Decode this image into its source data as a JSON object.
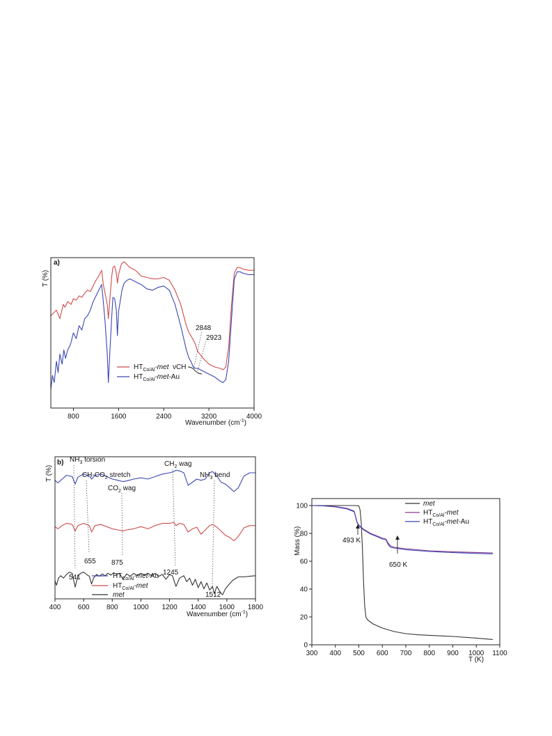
{
  "colors": {
    "red": "#cf4a4a",
    "blue": "#3a46b4",
    "black": "#333333",
    "purple": "#8a3b8a"
  },
  "chart_data": [
    {
      "id": "a",
      "type": "line",
      "panel_label": "a)",
      "xlabel": "Wavenumber (cm",
      "xlabel_sup": "-1",
      "xlabel_end": ")",
      "ylabel": "T (%)",
      "xlim": [
        400,
        4000
      ],
      "ylim": [
        0,
        100
      ],
      "xticks": [
        "800",
        "1600",
        "2400",
        "3200",
        "4000"
      ],
      "grid": false,
      "legend_position": "bottom-center",
      "annotations": [
        {
          "text": "2848",
          "x": 2848
        },
        {
          "text": "2923",
          "x": 2923
        },
        {
          "text": "νCH"
        }
      ],
      "series": [
        {
          "name": "HT",
          "name_sub": "Co/Al",
          "name_tail": "-met",
          "color": "red",
          "x": [
            400,
            500,
            560,
            620,
            650,
            700,
            760,
            800,
            850,
            900,
            950,
            1000,
            1050,
            1100,
            1150,
            1200,
            1250,
            1300,
            1330,
            1360,
            1400,
            1420,
            1450,
            1480,
            1500,
            1530,
            1560,
            1580,
            1600,
            1620,
            1640,
            1660,
            1700,
            1750,
            1800,
            1900,
            2000,
            2100,
            2200,
            2300,
            2400,
            2500,
            2600,
            2700,
            2800,
            2848,
            2880,
            2923,
            2960,
            3000,
            3100,
            3200,
            3300,
            3400,
            3450,
            3500,
            3550,
            3600,
            3650,
            3700,
            3750,
            3800,
            3900,
            4000
          ],
          "y": [
            62,
            66,
            60,
            70,
            68,
            72,
            70,
            74,
            73,
            76,
            75,
            78,
            80,
            79,
            83,
            87,
            90,
            94,
            84,
            78,
            70,
            60,
            76,
            90,
            96,
            97,
            92,
            85,
            91,
            94,
            97,
            99,
            100,
            98,
            96,
            94,
            90,
            89,
            88,
            88,
            89,
            87,
            80,
            70,
            55,
            50,
            48,
            45,
            42,
            37,
            32,
            28,
            26,
            25,
            24,
            26,
            40,
            70,
            92,
            96,
            96,
            95,
            94,
            94
          ]
        },
        {
          "name": "HT",
          "name_sub": "Co/Al",
          "name_tail": "-met-Au",
          "color": "blue",
          "x": [
            400,
            430,
            460,
            500,
            530,
            560,
            600,
            630,
            660,
            700,
            750,
            800,
            850,
            900,
            950,
            1000,
            1050,
            1100,
            1150,
            1200,
            1250,
            1300,
            1330,
            1360,
            1400,
            1420,
            1450,
            1480,
            1500,
            1530,
            1560,
            1580,
            1600,
            1620,
            1640,
            1660,
            1700,
            1750,
            1800,
            1900,
            2000,
            2100,
            2200,
            2300,
            2400,
            2500,
            2600,
            2700,
            2800,
            2848,
            2880,
            2923,
            2960,
            3000,
            3100,
            3200,
            3300,
            3400,
            3450,
            3500,
            3550,
            3600,
            3650,
            3700,
            3750,
            3800,
            3900,
            4000
          ],
          "y": [
            10,
            20,
            15,
            30,
            22,
            35,
            28,
            38,
            32,
            38,
            42,
            50,
            46,
            55,
            52,
            60,
            62,
            66,
            72,
            76,
            80,
            84,
            72,
            58,
            35,
            15,
            40,
            62,
            75,
            74,
            66,
            48,
            65,
            70,
            75,
            80,
            85,
            87,
            88,
            86,
            84,
            81,
            80,
            82,
            83,
            80,
            70,
            55,
            38,
            32,
            30,
            26,
            25,
            25,
            23,
            21,
            19,
            16,
            15,
            17,
            30,
            60,
            88,
            93,
            93,
            92,
            91,
            91
          ]
        }
      ]
    },
    {
      "id": "b",
      "type": "line",
      "panel_label": "b)",
      "xlabel": "Wavenumber (cm",
      "xlabel_sup": "-1",
      "xlabel_end": ")",
      "ylabel": "T (%)",
      "xlim": [
        400,
        1800
      ],
      "ylim": [
        0,
        100
      ],
      "xticks": [
        "400",
        "600",
        "800",
        "1000",
        "1200",
        "1400",
        "1600",
        "1800"
      ],
      "grid": false,
      "legend_position": "bottom-center",
      "annotations": [
        {
          "text": "NH",
          "sub": "3",
          "tail": " torsion"
        },
        {
          "text": "CH-CO",
          "sub": "2",
          "tail": " stretch"
        },
        {
          "text": "CO",
          "sub": "2",
          "tail": " wag"
        },
        {
          "text": "CH",
          "sub": "2",
          "tail": " wag"
        },
        {
          "text": "NH",
          "sub": "3",
          "tail": " bend"
        }
      ],
      "peak_labels": [
        {
          "text": "541",
          "x": 541
        },
        {
          "text": "655",
          "x": 655
        },
        {
          "text": "875",
          "x": 875
        },
        {
          "text": "1245",
          "x": 1245
        },
        {
          "text": "1512",
          "x": 1512
        }
      ],
      "series": [
        {
          "name": "HT",
          "name_sub": "Co/Al",
          "name_tail": "-met-Au",
          "color": "blue",
          "x": [
            400,
            420,
            450,
            480,
            520,
            541,
            560,
            600,
            640,
            655,
            680,
            720,
            760,
            800,
            840,
            875,
            900,
            950,
            1000,
            1050,
            1100,
            1150,
            1200,
            1230,
            1245,
            1270,
            1300,
            1330,
            1360,
            1390,
            1420,
            1450,
            1480,
            1500,
            1530,
            1560,
            1590,
            1620,
            1650,
            1680,
            1720,
            1760,
            1800
          ],
          "y": [
            78,
            74,
            80,
            86,
            84,
            72,
            83,
            88,
            85,
            80,
            86,
            88,
            84,
            80,
            78,
            76,
            77,
            80,
            82,
            80,
            84,
            88,
            90,
            92,
            94,
            93,
            90,
            70,
            75,
            80,
            78,
            80,
            90,
            92,
            85,
            75,
            72,
            66,
            60,
            66,
            85,
            90,
            90
          ]
        },
        {
          "name": "HT",
          "name_sub": "Co/Al",
          "name_tail": "-met",
          "color": "red",
          "x": [
            400,
            420,
            450,
            480,
            520,
            541,
            560,
            600,
            640,
            655,
            680,
            720,
            760,
            800,
            840,
            875,
            900,
            950,
            1000,
            1050,
            1100,
            1150,
            1200,
            1230,
            1245,
            1270,
            1300,
            1330,
            1360,
            1390,
            1420,
            1450,
            1480,
            1500,
            1530,
            1560,
            1590,
            1620,
            1650,
            1680,
            1720,
            1760,
            1800
          ],
          "y": [
            56,
            52,
            58,
            62,
            60,
            48,
            58,
            62,
            58,
            46,
            58,
            60,
            56,
            52,
            50,
            48,
            50,
            52,
            56,
            52,
            58,
            62,
            62,
            64,
            58,
            62,
            60,
            46,
            52,
            55,
            42,
            50,
            58,
            60,
            55,
            48,
            40,
            36,
            30,
            38,
            54,
            58,
            58
          ]
        },
        {
          "name": "met",
          "name_sub": "",
          "name_tail": "",
          "color": "black",
          "x": [
            400,
            410,
            425,
            440,
            460,
            480,
            500,
            520,
            541,
            560,
            580,
            600,
            620,
            640,
            655,
            670,
            690,
            710,
            730,
            750,
            770,
            790,
            810,
            830,
            850,
            875,
            900,
            925,
            950,
            975,
            1000,
            1025,
            1050,
            1075,
            1100,
            1125,
            1150,
            1175,
            1200,
            1220,
            1245,
            1270,
            1300,
            1320,
            1340,
            1360,
            1380,
            1400,
            1420,
            1440,
            1460,
            1480,
            1500,
            1512,
            1530,
            1550,
            1570,
            1590,
            1610,
            1640,
            1680,
            1720,
            1760,
            1800
          ],
          "y": [
            26,
            18,
            30,
            34,
            30,
            36,
            40,
            38,
            15,
            34,
            38,
            40,
            36,
            33,
            20,
            30,
            36,
            33,
            37,
            34,
            38,
            35,
            39,
            36,
            38,
            28,
            37,
            33,
            38,
            34,
            38,
            35,
            38,
            34,
            38,
            33,
            36,
            28,
            36,
            34,
            16,
            30,
            34,
            24,
            30,
            18,
            28,
            14,
            24,
            12,
            22,
            10,
            16,
            4,
            16,
            8,
            2,
            12,
            18,
            26,
            32,
            32,
            33,
            34
          ]
        }
      ]
    },
    {
      "id": "c",
      "type": "line",
      "xlabel": "T (K)",
      "ylabel": "Mass (%)",
      "xlim": [
        300,
        1100
      ],
      "ylim": [
        0,
        100
      ],
      "xticks": [
        "300",
        "400",
        "500",
        "600",
        "700",
        "800",
        "900",
        "1000",
        "1100"
      ],
      "yticks": [
        "0",
        "20",
        "40",
        "60",
        "80",
        "100"
      ],
      "grid": false,
      "legend_position": "top-right",
      "annotations": [
        {
          "text": "493 K",
          "x": 493,
          "y": 86
        },
        {
          "text": "650 K",
          "x": 660,
          "y": 70
        }
      ],
      "series": [
        {
          "name": "met",
          "name_sub": "",
          "name_tail": "",
          "color": "black",
          "x": [
            300,
            400,
            480,
            500,
            505,
            510,
            515,
            520,
            525,
            530,
            535,
            540,
            560,
            600,
            650,
            700,
            750,
            800,
            900,
            1000,
            1070
          ],
          "y": [
            100,
            100,
            100,
            99.8,
            97,
            88,
            70,
            45,
            28,
            20,
            18.5,
            17.5,
            15,
            12,
            9.5,
            8,
            7.2,
            6.8,
            6,
            4.8,
            3.8
          ]
        },
        {
          "name": "HT",
          "name_sub": "Co/Al",
          "name_tail": "-met",
          "color": "purple",
          "x": [
            300,
            350,
            400,
            450,
            480,
            493,
            500,
            520,
            550,
            580,
            600,
            615,
            625,
            635,
            650,
            700,
            800,
            900,
            1000,
            1070
          ],
          "y": [
            100,
            99.8,
            99.3,
            98,
            96,
            88,
            86,
            83,
            80,
            78,
            76.5,
            76,
            73,
            71,
            70,
            69,
            67.5,
            66.8,
            66.3,
            66
          ]
        },
        {
          "name": "HT",
          "name_sub": "Co/Al",
          "name_tail": "-met-Au",
          "color": "blue",
          "x": [
            300,
            350,
            400,
            450,
            480,
            493,
            500,
            520,
            550,
            580,
            600,
            615,
            625,
            635,
            650,
            700,
            800,
            900,
            1000,
            1070
          ],
          "y": [
            100,
            99.7,
            99,
            97.5,
            95.5,
            87.5,
            85.5,
            82.5,
            79.5,
            77.5,
            76,
            75.5,
            72,
            70,
            69.5,
            68.3,
            67,
            66.2,
            65.6,
            65.3
          ]
        }
      ]
    }
  ]
}
